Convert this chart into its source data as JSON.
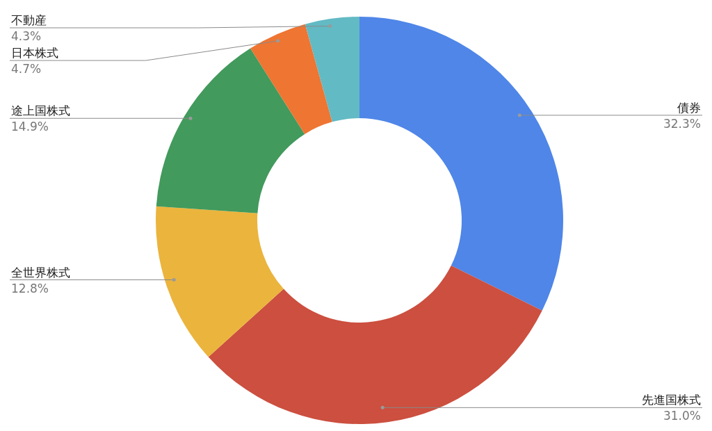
{
  "chart_data": {
    "type": "donut",
    "categories": [
      "債券",
      "先進国株式",
      "全世界株式",
      "途上国株式",
      "日本株式",
      "不動産"
    ],
    "values": [
      32.3,
      31.0,
      12.8,
      14.9,
      4.7,
      4.3
    ],
    "value_labels": [
      "32.3%",
      "31.0%",
      "12.8%",
      "14.9%",
      "4.7%",
      "4.3%"
    ],
    "colors": [
      "#4f86e8",
      "#cc4f3f",
      "#ebb43d",
      "#429a5c",
      "#ee7532",
      "#62bac4"
    ],
    "legend": false
  }
}
